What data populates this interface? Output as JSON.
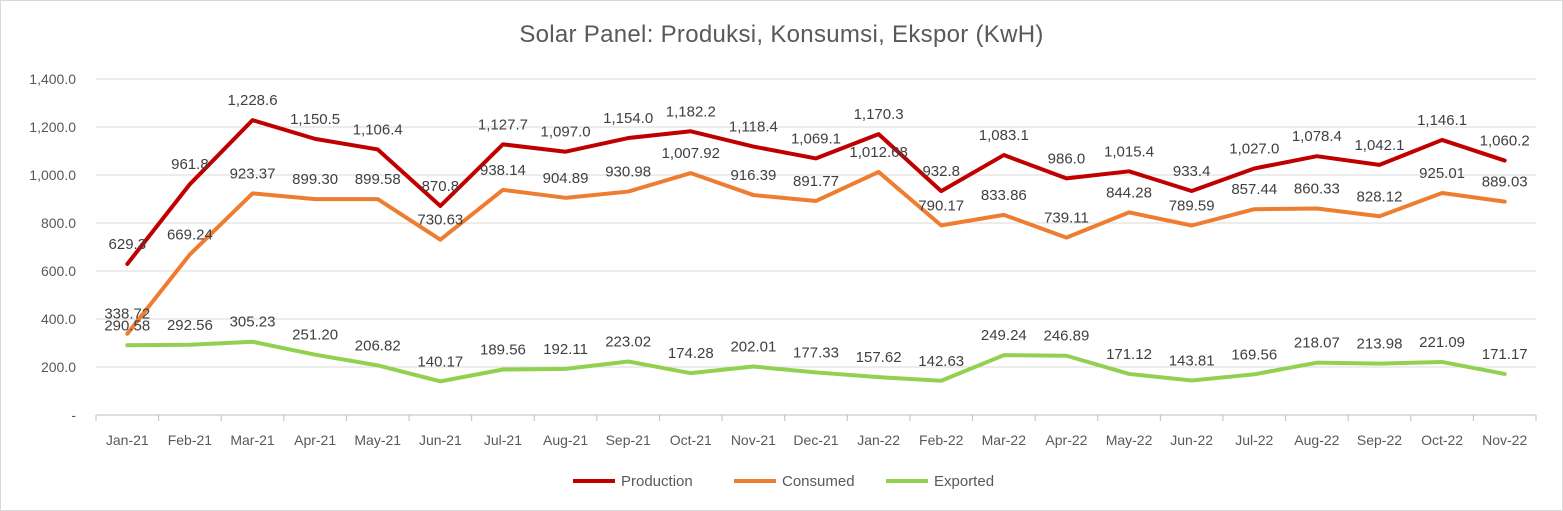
{
  "chart_data": {
    "type": "line",
    "title": "Solar Panel: Produksi, Konsumsi, Ekspor (KwH)",
    "xlabel": "",
    "ylabel": "",
    "ylim": [
      0,
      1400
    ],
    "yticks": [
      "-",
      "200.0",
      "400.0",
      "600.0",
      "800.0",
      "1,000.0",
      "1,200.0",
      "1,400.0"
    ],
    "grid": true,
    "legend_position": "bottom",
    "categories": [
      "Jan-21",
      "Feb-21",
      "Mar-21",
      "Apr-21",
      "May-21",
      "Jun-21",
      "Jul-21",
      "Aug-21",
      "Sep-21",
      "Oct-21",
      "Nov-21",
      "Dec-21",
      "Jan-22",
      "Feb-22",
      "Mar-22",
      "Apr-22",
      "May-22",
      "Jun-22",
      "Jul-22",
      "Aug-22",
      "Sep-22",
      "Oct-22",
      "Nov-22"
    ],
    "series": [
      {
        "name": "Production",
        "color": "#C00000",
        "values": [
          629.3,
          961.8,
          1228.6,
          1150.5,
          1106.4,
          870.8,
          1127.7,
          1097.0,
          1154.0,
          1182.2,
          1118.4,
          1069.1,
          1170.3,
          932.8,
          1083.1,
          986.0,
          1015.4,
          933.4,
          1027.0,
          1078.4,
          1042.1,
          1146.1,
          1060.2
        ],
        "labels": [
          "629.3",
          "961.8",
          "1,228.6",
          "1,150.5",
          "1,106.4",
          "870.8",
          "1,127.7",
          "1,097.0",
          "1,154.0",
          "1,182.2",
          "1,118.4",
          "1,069.1",
          "1,170.3",
          "932.8",
          "1,083.1",
          "986.0",
          "1,015.4",
          "933.4",
          "1,027.0",
          "1,078.4",
          "1,042.1",
          "1,146.1",
          "1,060.2"
        ]
      },
      {
        "name": "Consumed",
        "color": "#ED7D31",
        "values": [
          338.72,
          669.24,
          923.37,
          899.3,
          899.58,
          730.63,
          938.14,
          904.89,
          930.98,
          1007.92,
          916.39,
          891.77,
          1012.68,
          790.17,
          833.86,
          739.11,
          844.28,
          789.59,
          857.44,
          860.33,
          828.12,
          925.01,
          889.03
        ],
        "labels": [
          "338.72",
          "669.24",
          "923.37",
          "899.30",
          "899.58",
          "730.63",
          "938.14",
          "904.89",
          "930.98",
          "1,007.92",
          "916.39",
          "891.77",
          "1,012.68",
          "790.17",
          "833.86",
          "739.11",
          "844.28",
          "789.59",
          "857.44",
          "860.33",
          "828.12",
          "925.01",
          "889.03"
        ]
      },
      {
        "name": "Exported",
        "color": "#92D050",
        "values": [
          290.58,
          292.56,
          305.23,
          251.2,
          206.82,
          140.17,
          189.56,
          192.11,
          223.02,
          174.28,
          202.01,
          177.33,
          157.62,
          142.63,
          249.24,
          246.89,
          171.12,
          143.81,
          169.56,
          218.07,
          213.98,
          221.09,
          171.17
        ],
        "labels": [
          "290.58",
          "292.56",
          "305.23",
          "251.20",
          "206.82",
          "140.17",
          "189.56",
          "192.11",
          "223.02",
          "174.28",
          "202.01",
          "177.33",
          "157.62",
          "142.63",
          "249.24",
          "246.89",
          "171.12",
          "143.81",
          "169.56",
          "218.07",
          "213.98",
          "221.09",
          "171.17"
        ]
      }
    ]
  }
}
